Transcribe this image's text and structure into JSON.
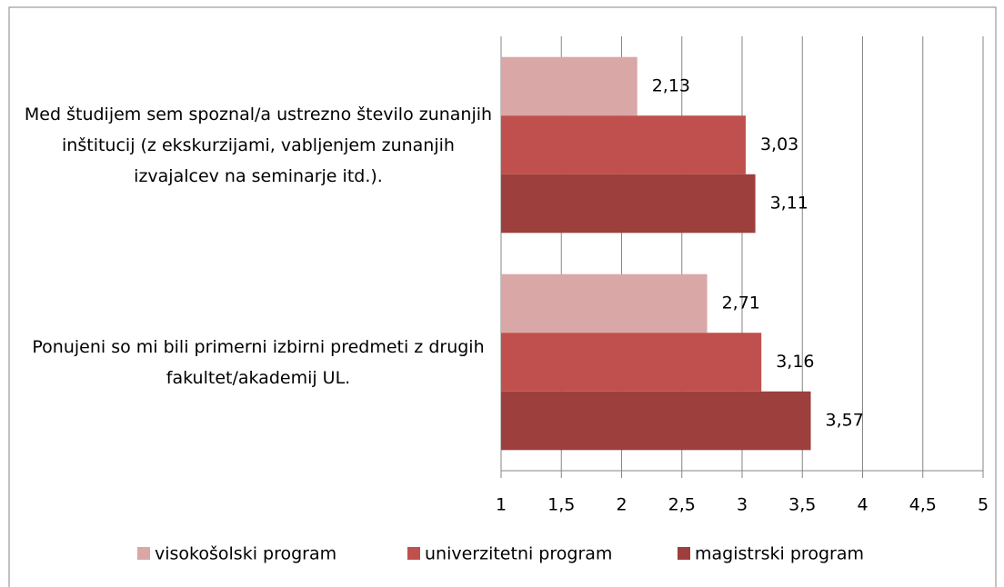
{
  "chart_data": {
    "type": "hbar",
    "categories": [
      "Med študijem sem spoznal/a ustrezno število zunanjih inštitucij (z ekskurzijami, vabljenjem zunanjih izvajalcev na seminarje itd.).",
      "Ponujeni so mi bili primerni izbirni predmeti z drugih fakultet/akademij UL."
    ],
    "series": [
      {
        "name": "visokošolski program",
        "color": "#d9a7a6",
        "values": [
          2.13,
          2.71
        ],
        "value_labels": [
          "2,13",
          "2,71"
        ]
      },
      {
        "name": "univerzitetni program",
        "color": "#c0504d",
        "values": [
          3.03,
          3.16
        ],
        "value_labels": [
          "3,03",
          "3,16"
        ]
      },
      {
        "name": "magistrski program",
        "color": "#9d3f3d",
        "values": [
          3.11,
          3.57
        ],
        "value_labels": [
          "3,11",
          "3,57"
        ]
      }
    ],
    "xlim": [
      1,
      5
    ],
    "xticks": [
      1,
      {
        "value": 1.5,
        "label": "1,5"
      },
      2,
      {
        "value": 2.5,
        "label": "2,5"
      },
      3,
      {
        "value": 3.5,
        "label": "3,5"
      },
      4,
      {
        "value": 4.5,
        "label": "4,5"
      },
      5
    ],
    "grid": true,
    "legend": "bottom"
  }
}
